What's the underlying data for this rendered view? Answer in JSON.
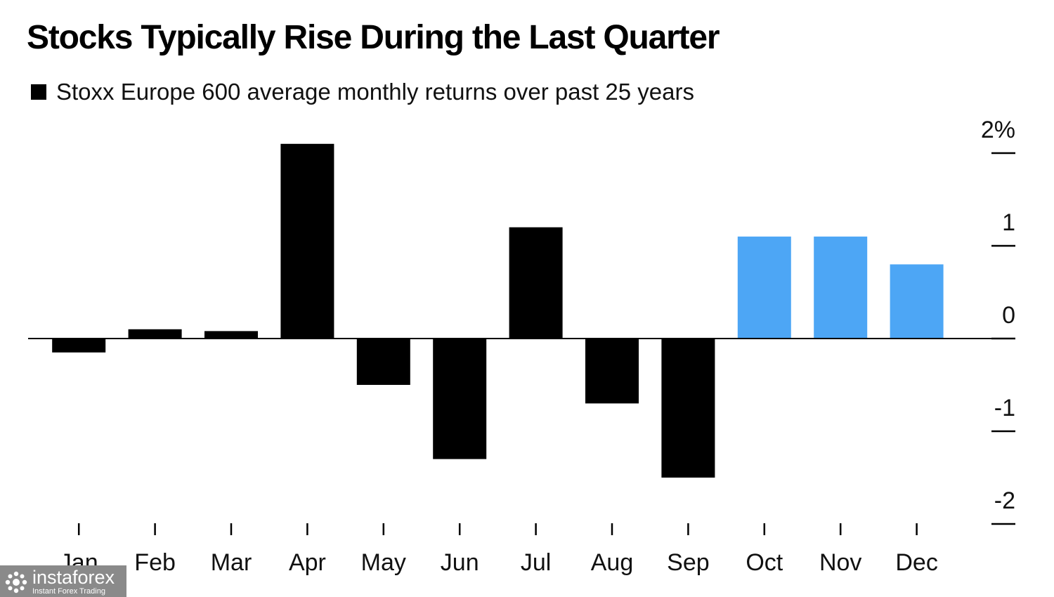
{
  "chart_data": {
    "type": "bar",
    "title": "Stocks Typically Rise During the Last Quarter",
    "xlabel": "",
    "ylabel": "",
    "categories": [
      "Jan",
      "Feb",
      "Mar",
      "Apr",
      "May",
      "Jun",
      "Jul",
      "Aug",
      "Sep",
      "Oct",
      "Nov",
      "Dec"
    ],
    "series": [
      {
        "name": "Stoxx Europe 600 average monthly returns over past 25 years",
        "values": [
          -0.15,
          0.1,
          0.08,
          2.1,
          -0.5,
          -1.3,
          1.2,
          -0.7,
          -1.5,
          1.1,
          1.1,
          0.8
        ],
        "colors": [
          "#000000",
          "#000000",
          "#000000",
          "#000000",
          "#000000",
          "#000000",
          "#000000",
          "#000000",
          "#000000",
          "#4da6f5",
          "#4da6f5",
          "#4da6f5"
        ]
      }
    ],
    "ylim": [
      -2,
      2
    ],
    "y_ticks": [
      2,
      1,
      0,
      -1,
      -2
    ],
    "y_tick_labels": [
      "2%",
      "1",
      "0",
      "-1",
      "-2"
    ],
    "y_axis_side": "right",
    "grid": false,
    "legend_position": "top-left",
    "zero_line": true
  },
  "colors": {
    "default_bar": "#000000",
    "highlight_bar": "#4da6f5",
    "axis": "#000000",
    "text": "#111111"
  },
  "watermark": {
    "name": "instaforex",
    "tagline": "Instant Forex Trading",
    "icon": "instaforex-logo-icon"
  }
}
